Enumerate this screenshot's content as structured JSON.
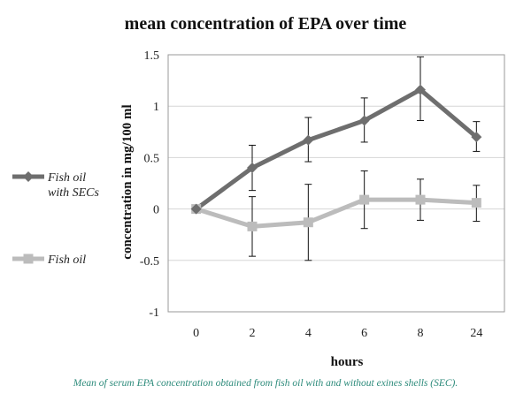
{
  "chart_data": {
    "type": "line",
    "title": "mean concentration  of EPA over time",
    "xlabel": "hours",
    "ylabel": "concentration in mg/100 ml",
    "categories": [
      "0",
      "2",
      "4",
      "6",
      "8",
      "24"
    ],
    "ylim": [
      -1,
      1.5
    ],
    "yticks": [
      "1.5",
      "1",
      "0.5",
      "0",
      "-0.5",
      "-1"
    ],
    "grid": "horizontal",
    "legend_position": "left",
    "series": [
      {
        "name": "Fish oil with SECs",
        "name_lines": [
          "Fish oil",
          "with SECs"
        ],
        "color": "#6e6e6e",
        "marker": "diamond",
        "values": [
          0,
          0.4,
          0.67,
          0.86,
          1.16,
          0.7
        ],
        "error_low": [
          0,
          0.18,
          0.46,
          0.65,
          0.86,
          0.56
        ],
        "error_high": [
          0,
          0.62,
          0.89,
          1.08,
          1.48,
          0.85
        ]
      },
      {
        "name": "Fish oil",
        "name_lines": [
          "Fish oil"
        ],
        "color": "#bcbcbc",
        "marker": "square",
        "values": [
          0,
          -0.17,
          -0.13,
          0.09,
          0.09,
          0.06
        ],
        "error_low": [
          0,
          -0.46,
          -0.5,
          -0.19,
          -0.11,
          -0.12
        ],
        "error_high": [
          0,
          0.12,
          0.24,
          0.37,
          0.29,
          0.23
        ]
      }
    ]
  },
  "caption": "Mean of serum EPA concentration obtained from fish oil with and without exines shells (SEC)."
}
